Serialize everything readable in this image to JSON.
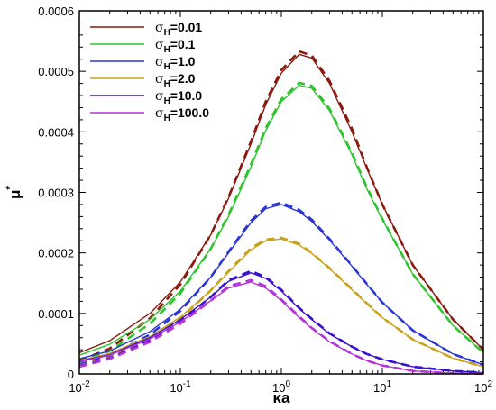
{
  "chart_data": {
    "type": "line",
    "x_scale": "log",
    "xlim": [
      0.01,
      100
    ],
    "ylim": [
      0,
      0.0006
    ],
    "xlabel": "κa",
    "ylabel": "μ",
    "ylabel_superscript": "*",
    "x_ticks": [
      {
        "value": 0.01,
        "base": "10",
        "exp": "-2"
      },
      {
        "value": 0.1,
        "base": "10",
        "exp": "-1"
      },
      {
        "value": 1,
        "base": "10",
        "exp": "0"
      },
      {
        "value": 10,
        "base": "10",
        "exp": "1"
      },
      {
        "value": 100,
        "base": "10",
        "exp": "2"
      }
    ],
    "y_ticks": [
      {
        "value": 0,
        "label": "0"
      },
      {
        "value": 0.0001,
        "label": "0.0001"
      },
      {
        "value": 0.0002,
        "label": "0.0002"
      },
      {
        "value": 0.0003,
        "label": "0.0003"
      },
      {
        "value": 0.0004,
        "label": "0.0004"
      },
      {
        "value": 0.0005,
        "label": "0.0005"
      },
      {
        "value": 0.0006,
        "label": "0.0006"
      }
    ],
    "legend_position": "top-left",
    "line_styles": [
      "solid",
      "dashed"
    ],
    "x": [
      0.01,
      0.02,
      0.05,
      0.1,
      0.2,
      0.3,
      0.5,
      0.7,
      1,
      1.5,
      2,
      3,
      5,
      7,
      10,
      20,
      50,
      100
    ],
    "series": [
      {
        "name": "0.01",
        "legend_symbol": "σ",
        "legend_sub": "H",
        "color": "#8b1a10",
        "values": [
          3.5e-05,
          5.5e-05,
          0.0001,
          0.000152,
          0.00023,
          0.00029,
          0.00038,
          0.000445,
          0.000497,
          0.000528,
          0.000522,
          0.00048,
          0.0004,
          0.00034,
          0.00028,
          0.00018,
          9e-05,
          4e-05
        ],
        "dashed_values": [
          2.2e-05,
          4.2e-05,
          9.2e-05,
          0.000148,
          0.00023,
          0.000292,
          0.000384,
          0.00045,
          0.000502,
          0.000533,
          0.000526,
          0.000484,
          0.000405,
          0.000342,
          0.00028,
          0.00018,
          9e-05,
          4e-05
        ]
      },
      {
        "name": "0.1",
        "legend_symbol": "σ",
        "legend_sub": "H",
        "color": "#2ec42e",
        "values": [
          3.1e-05,
          4.9e-05,
          9e-05,
          0.000137,
          0.000207,
          0.00026,
          0.000342,
          0.000402,
          0.00045,
          0.000477,
          0.000472,
          0.000435,
          0.000362,
          0.000306,
          0.000255,
          0.000165,
          8e-05,
          3.5e-05
        ],
        "dashed_values": [
          2e-05,
          3.8e-05,
          8.3e-05,
          0.000133,
          0.000207,
          0.000263,
          0.000346,
          0.000406,
          0.000454,
          0.000481,
          0.000476,
          0.000438,
          0.000365,
          0.000309,
          0.000256,
          0.000165,
          8e-05,
          3.5e-05
        ]
      },
      {
        "name": "1.0",
        "legend_symbol": "σ",
        "legend_sub": "H",
        "color": "#2a35d6",
        "values": [
          2.5e-05,
          3.8e-05,
          7e-05,
          0.000107,
          0.00016,
          0.0002,
          0.00025,
          0.000273,
          0.00028,
          0.000268,
          0.000252,
          0.000221,
          0.000178,
          0.000148,
          0.000118,
          7.2e-05,
          3.3e-05,
          1.5e-05
        ],
        "dashed_values": [
          1.6e-05,
          3e-05,
          6.5e-05,
          0.000104,
          0.00016,
          0.000202,
          0.000253,
          0.000276,
          0.000283,
          0.000271,
          0.000255,
          0.000223,
          0.000179,
          0.000149,
          0.000118,
          7.2e-05,
          3.3e-05,
          1.5e-05
        ]
      },
      {
        "name": "2.0",
        "legend_symbol": "σ",
        "legend_sub": "H",
        "color": "#c9a21a",
        "values": [
          2.2e-05,
          3.4e-05,
          6.2e-05,
          9.4e-05,
          0.000138,
          0.000168,
          0.000205,
          0.00022,
          0.000223,
          0.000213,
          0.000199,
          0.000174,
          0.000139,
          0.000116,
          9.3e-05,
          5.7e-05,
          2.6e-05,
          1.2e-05
        ],
        "dashed_values": [
          1.4e-05,
          2.7e-05,
          5.8e-05,
          9.1e-05,
          0.000138,
          0.00017,
          0.000208,
          0.000222,
          0.000225,
          0.000215,
          0.0002,
          0.000175,
          0.00014,
          0.000117,
          9.3e-05,
          5.7e-05,
          2.6e-05,
          1.2e-05
        ]
      },
      {
        "name": "10.0",
        "legend_symbol": "σ",
        "legend_sub": "H",
        "color": "#3a10d0",
        "values": [
          2.1e-05,
          3.2e-05,
          6e-05,
          9e-05,
          0.000127,
          0.000153,
          0.000167,
          0.000158,
          0.000137,
          0.000108,
          9e-05,
          6.6e-05,
          4.5e-05,
          3.3e-05,
          2.4e-05,
          1.2e-05,
          5e-06,
          2e-06
        ],
        "dashed_values": [
          1.3e-05,
          2.6e-05,
          5.5e-05,
          8.7e-05,
          0.000127,
          0.000155,
          0.00017,
          0.00016,
          0.000139,
          0.000109,
          9.1e-05,
          6.7e-05,
          4.5e-05,
          3.3e-05,
          2.4e-05,
          1.2e-05,
          5e-06,
          2e-06
        ]
      },
      {
        "name": "100.0",
        "legend_symbol": "σ",
        "legend_sub": "H",
        "color": "#b534d9",
        "values": [
          2e-05,
          3.1e-05,
          5.8e-05,
          8.6e-05,
          0.000121,
          0.000142,
          0.000152,
          0.000142,
          0.000121,
          9.3e-05,
          7.5e-05,
          5.3e-05,
          3.3e-05,
          2.2e-05,
          1.4e-05,
          5e-06,
          1e-06,
          3e-07
        ],
        "dashed_values": [
          1.2e-05,
          2.5e-05,
          5.3e-05,
          8.3e-05,
          0.000121,
          0.000145,
          0.000155,
          0.000145,
          0.000123,
          9.5e-05,
          7.6e-05,
          5.4e-05,
          3.3e-05,
          2.2e-05,
          1.4e-05,
          5e-06,
          1e-06,
          3e-07
        ]
      }
    ]
  }
}
